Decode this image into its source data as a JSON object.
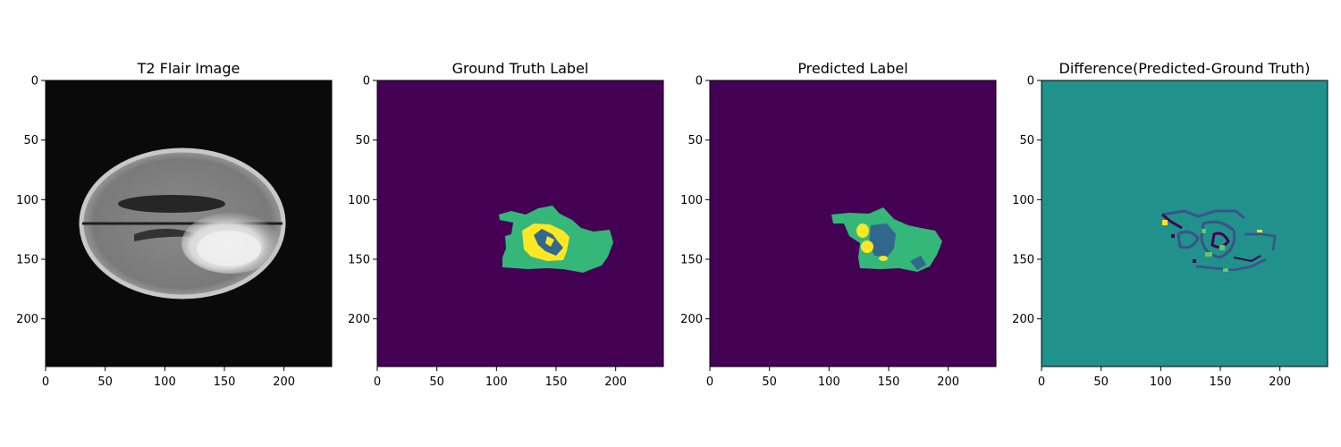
{
  "chart_data": [
    {
      "type": "image",
      "title": "T2 Flair Image",
      "xticks": [
        "0",
        "50",
        "100",
        "150",
        "200"
      ],
      "yticks": [
        "0",
        "50",
        "100",
        "150",
        "200"
      ],
      "xlim": [
        0,
        240
      ],
      "ylim": [
        240,
        0
      ],
      "image_content": "grayscale axial brain MRI slice with bright lesion on the right side"
    },
    {
      "type": "image",
      "title": "Ground Truth Label",
      "xticks": [
        "0",
        "50",
        "100",
        "150",
        "200"
      ],
      "yticks": [
        "0",
        "50",
        "100",
        "150",
        "200"
      ],
      "xlim": [
        0,
        240
      ],
      "ylim": [
        240,
        0
      ],
      "colormap": "viridis",
      "colors": {
        "background": "#440154",
        "edema": "#35b779",
        "core": "#31688e",
        "enhancing": "#fde725"
      }
    },
    {
      "type": "image",
      "title": "Predicted Label",
      "xticks": [
        "0",
        "50",
        "100",
        "150",
        "200"
      ],
      "yticks": [
        "0",
        "50",
        "100",
        "150",
        "200"
      ],
      "xlim": [
        0,
        240
      ],
      "ylim": [
        240,
        0
      ],
      "colormap": "viridis",
      "colors": {
        "background": "#440154",
        "edema": "#35b779",
        "core": "#31688e",
        "enhancing": "#fde725"
      }
    },
    {
      "type": "image",
      "title": "Difference(Predicted-Ground Truth)",
      "xticks": [
        "0",
        "50",
        "100",
        "150",
        "200"
      ],
      "yticks": [
        "0",
        "50",
        "100",
        "150",
        "200"
      ],
      "xlim": [
        0,
        240
      ],
      "ylim": [
        240,
        0
      ],
      "colormap": "viridis",
      "colors": {
        "background": "#21918c",
        "negative": "#3b528b",
        "strong_negative": "#440154",
        "positive": "#5ec962",
        "strong_positive": "#fde725"
      }
    }
  ]
}
